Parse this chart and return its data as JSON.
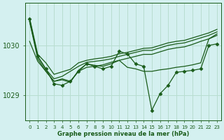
{
  "xlabel": "Graphe pression niveau de la mer (hPa)",
  "background_color": "#d4f0f0",
  "grid_color": "#b8ddd0",
  "line_color": "#1a5c1a",
  "ylim": [
    1028.5,
    1030.85
  ],
  "yticks": [
    1029,
    1030
  ],
  "xlim": [
    -0.5,
    23.5
  ],
  "xtick_labels": [
    "0",
    "1",
    "2",
    "3",
    "4",
    "5",
    "6",
    "7",
    "8",
    "9",
    "10",
    "11",
    "12",
    "13",
    "14",
    "15",
    "16",
    "17",
    "18",
    "19",
    "20",
    "21",
    "22",
    "23"
  ],
  "series": [
    {
      "x": [
        0,
        1,
        2,
        3,
        4,
        5,
        6,
        7,
        8,
        9,
        10,
        11,
        12,
        13,
        14,
        15,
        16,
        17,
        18,
        19,
        20,
        21,
        22,
        23
      ],
      "y": [
        1030.55,
        1029.82,
        1029.65,
        1029.42,
        1029.47,
        1029.52,
        1029.65,
        1029.7,
        1029.73,
        1029.75,
        1029.78,
        1029.83,
        1029.86,
        1029.9,
        1029.94,
        1029.95,
        1030.0,
        1030.05,
        1030.08,
        1030.1,
        1030.15,
        1030.2,
        1030.25,
        1030.32
      ],
      "marker": null,
      "lw": 0.9
    },
    {
      "x": [
        0,
        1,
        2,
        3,
        4,
        5,
        6,
        7,
        8,
        9,
        10,
        11,
        12,
        13,
        14,
        15,
        16,
        17,
        18,
        19,
        20,
        21,
        22,
        23
      ],
      "y": [
        1030.48,
        1029.78,
        1029.52,
        1029.33,
        1029.38,
        1029.48,
        1029.58,
        1029.66,
        1029.68,
        1029.7,
        1029.73,
        1029.78,
        1029.82,
        1029.86,
        1029.9,
        1029.9,
        1029.95,
        1030.0,
        1030.03,
        1030.05,
        1030.1,
        1030.15,
        1030.2,
        1030.27
      ],
      "marker": null,
      "lw": 0.9
    },
    {
      "x": [
        0,
        1,
        2,
        3,
        4,
        5,
        6,
        7,
        8,
        9,
        10,
        11,
        12,
        13,
        14,
        15,
        16,
        17,
        18,
        19,
        20,
        21,
        22,
        23
      ],
      "y": [
        1030.08,
        1029.68,
        1029.48,
        1029.28,
        1029.33,
        1029.28,
        1029.48,
        1029.56,
        1029.58,
        1029.61,
        1029.66,
        1029.7,
        1029.74,
        1029.78,
        1029.82,
        1029.82,
        1029.87,
        1029.92,
        1029.95,
        1029.97,
        1030.02,
        1030.08,
        1030.13,
        1030.2
      ],
      "marker": null,
      "lw": 0.9
    },
    {
      "x": [
        0,
        1,
        2,
        3,
        4,
        5,
        6,
        7,
        8,
        9,
        10,
        11,
        12,
        13,
        14,
        15,
        16,
        17,
        18,
        19,
        20,
        21,
        22,
        23
      ],
      "y": [
        1030.48,
        1029.73,
        1029.48,
        1029.28,
        1029.31,
        1029.26,
        1029.5,
        1029.63,
        1029.6,
        1029.58,
        1029.63,
        1029.7,
        1029.56,
        1029.53,
        1029.48,
        1029.48,
        1029.51,
        1029.53,
        1029.56,
        1029.58,
        1029.61,
        1029.65,
        1030.13,
        1030.23
      ],
      "marker": null,
      "lw": 0.9
    },
    {
      "x": [
        0,
        1,
        2,
        3,
        4,
        5,
        6,
        7,
        8,
        9,
        10,
        11,
        12,
        13,
        14,
        15,
        16,
        17,
        18,
        19,
        20,
        21,
        22,
        23
      ],
      "y": [
        1030.53,
        1029.78,
        1029.53,
        1029.23,
        1029.2,
        1029.28,
        1029.48,
        1029.63,
        1029.58,
        1029.53,
        1029.58,
        1029.88,
        1029.83,
        1029.63,
        1029.58,
        1028.7,
        1029.03,
        1029.2,
        1029.46,
        1029.48,
        1029.5,
        1029.53,
        1030.0,
        1030.03
      ],
      "marker": "D",
      "markersize": 2.5,
      "lw": 0.9
    }
  ]
}
